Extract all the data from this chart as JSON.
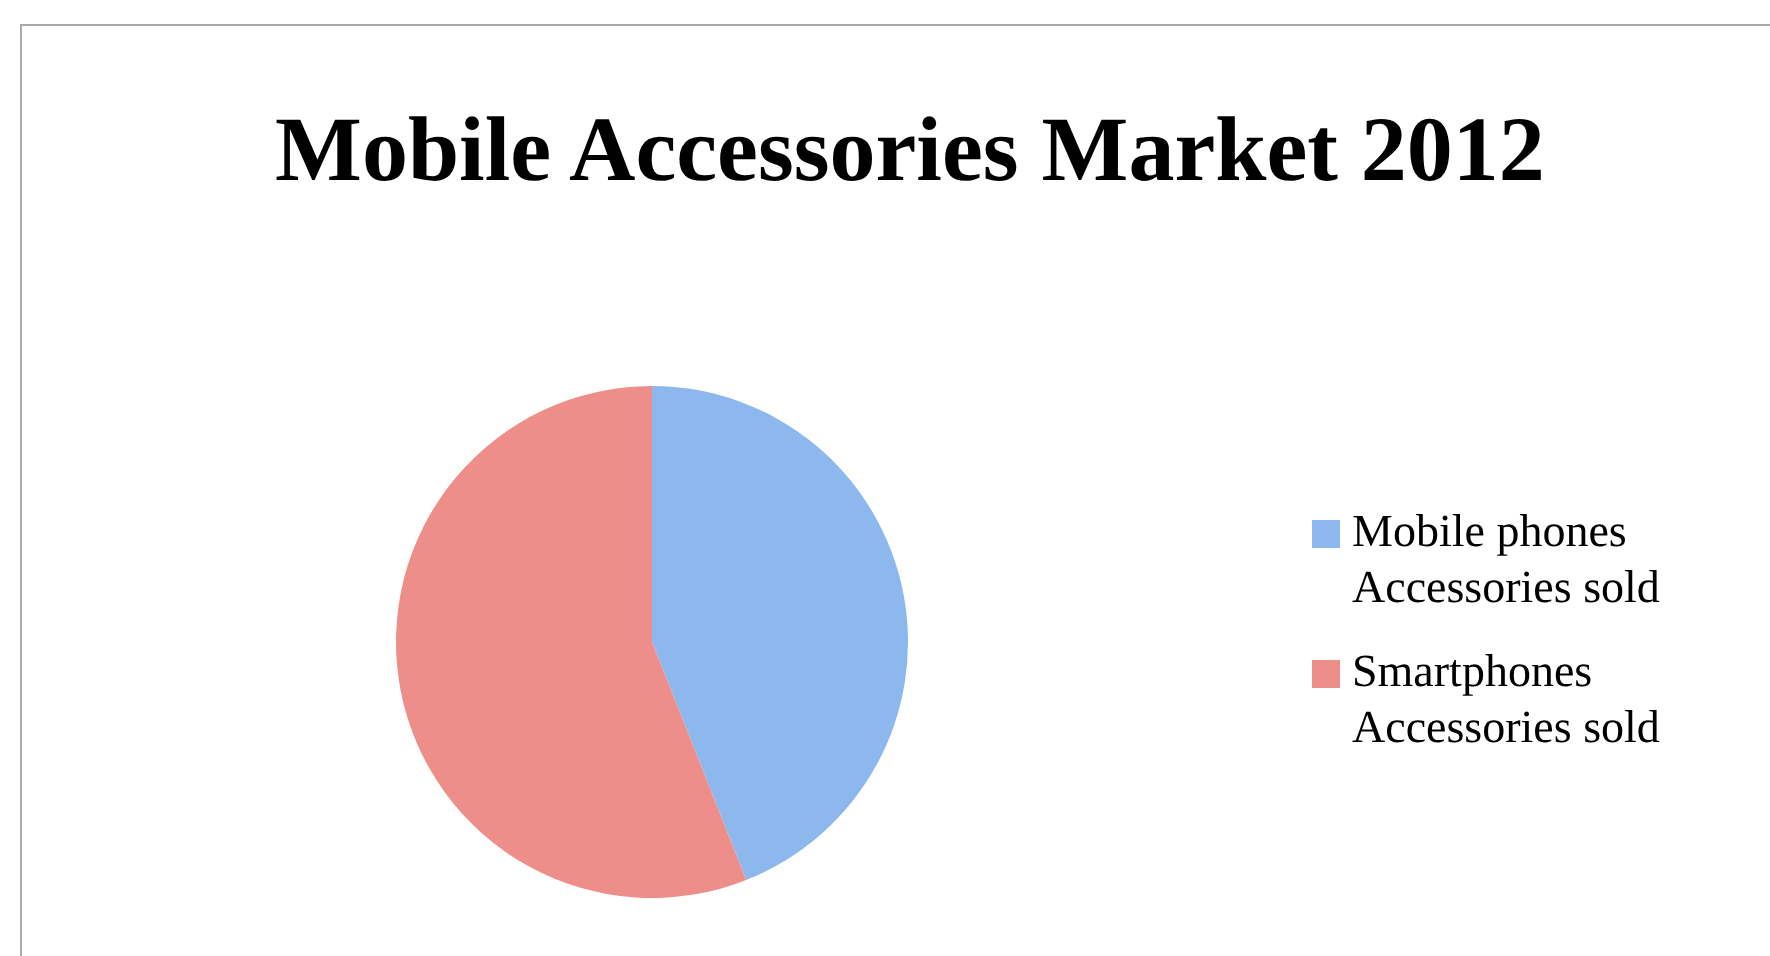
{
  "chart_data": {
    "type": "pie",
    "title": "Mobile Accessories Market 2012",
    "categories": [
      "Mobile phones Accessories sold",
      "Smartphones Accessories sold"
    ],
    "values": [
      44,
      56
    ],
    "colors": [
      "#8db8ee",
      "#ee8e8b"
    ],
    "legend": "right"
  }
}
